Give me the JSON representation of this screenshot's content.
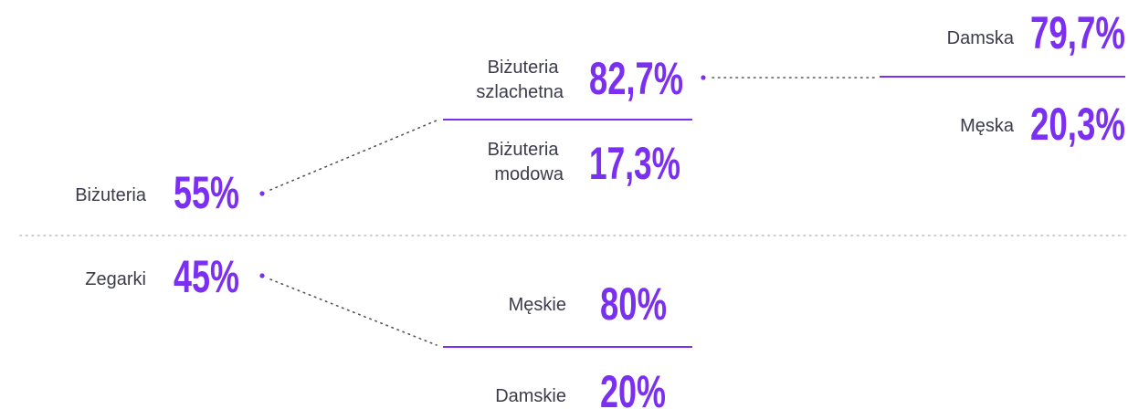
{
  "nodes": [
    {
      "label": [
        "Biżuteria"
      ],
      "value": "55%"
    },
    {
      "label": [
        "Biżuteria",
        "szlachetna"
      ],
      "value": "82,7%"
    },
    {
      "label": [
        "Biżuteria",
        "modowa"
      ],
      "value": "17,3%"
    },
    {
      "label": [
        "Damska"
      ],
      "value": "79,7%"
    },
    {
      "label": [
        "Męska"
      ],
      "value": "20,3%"
    },
    {
      "label": [
        "Zegarki"
      ],
      "value": "45%"
    },
    {
      "label": [
        "Męskie"
      ],
      "value": "80%"
    },
    {
      "label": [
        "Damskie"
      ],
      "value": "20%"
    }
  ]
}
